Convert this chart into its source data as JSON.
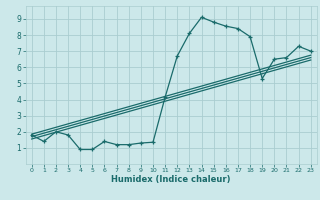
{
  "title": "",
  "xlabel": "Humidex (Indice chaleur)",
  "bg_color": "#cce8ea",
  "grid_color": "#aacdd0",
  "line_color": "#1a6b6b",
  "xlim": [
    -0.5,
    23.5
  ],
  "ylim": [
    0.0,
    9.8
  ],
  "xticks": [
    0,
    1,
    2,
    3,
    4,
    5,
    6,
    7,
    8,
    9,
    10,
    11,
    12,
    13,
    14,
    15,
    16,
    17,
    18,
    19,
    20,
    21,
    22,
    23
  ],
  "yticks": [
    1,
    2,
    3,
    4,
    5,
    6,
    7,
    8,
    9
  ],
  "curve_x": [
    0,
    1,
    2,
    3,
    4,
    5,
    6,
    7,
    8,
    9,
    10,
    11,
    12,
    13,
    14,
    15,
    16,
    17,
    18,
    19,
    20,
    21,
    22,
    23
  ],
  "curve_y": [
    1.8,
    1.4,
    2.0,
    1.8,
    0.9,
    0.9,
    1.4,
    1.2,
    1.2,
    1.3,
    1.35,
    4.15,
    6.7,
    8.1,
    9.1,
    8.8,
    8.55,
    8.4,
    7.9,
    5.3,
    6.5,
    6.6,
    7.3,
    7.0
  ],
  "trend_lines": [
    [
      1.55,
      6.45
    ],
    [
      1.7,
      6.6
    ],
    [
      1.85,
      6.75
    ]
  ]
}
